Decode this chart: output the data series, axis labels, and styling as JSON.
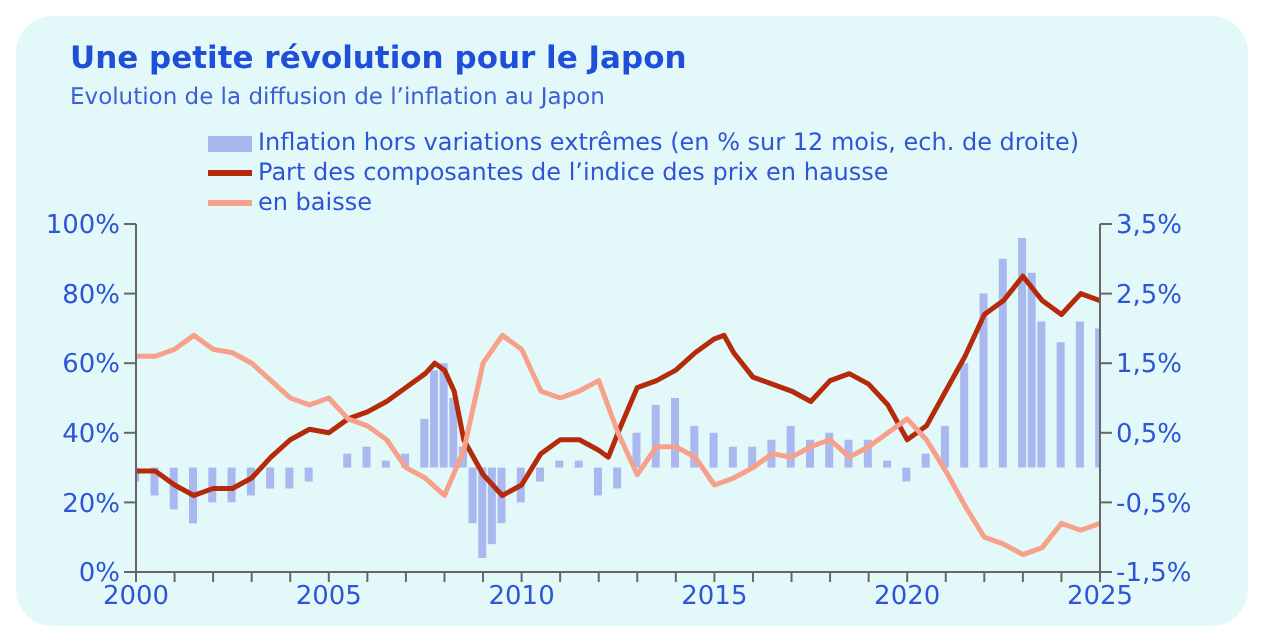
{
  "chart_data": {
    "type": "line",
    "title": "Une petite révolution pour le Japon",
    "subtitle": "Evolution de la diffusion de l’inflation au Japon",
    "legend": "top",
    "grid": false,
    "marker": "none",
    "xlim": [
      2000,
      2025
    ],
    "xticks": [
      2000,
      {
        "value": 2001,
        "label": null
      },
      {
        "value": 2002,
        "label": null
      },
      {
        "value": 2003,
        "label": null
      },
      {
        "value": 2004,
        "label": null
      },
      2005,
      {
        "value": 2006,
        "label": null
      },
      {
        "value": 2007,
        "label": null
      },
      {
        "value": 2008,
        "label": null
      },
      {
        "value": 2009,
        "label": null
      },
      2010,
      {
        "value": 2011,
        "label": null
      },
      {
        "value": 2012,
        "label": null
      },
      {
        "value": 2013,
        "label": null
      },
      {
        "value": 2014,
        "label": null
      },
      2015,
      {
        "value": 2016,
        "label": null
      },
      {
        "value": 2017,
        "label": null
      },
      {
        "value": 2018,
        "label": null
      },
      {
        "value": 2019,
        "label": null
      },
      2020,
      {
        "value": 2021,
        "label": null
      },
      {
        "value": 2022,
        "label": null
      },
      {
        "value": 2023,
        "label": null
      },
      {
        "value": 2024,
        "label": null
      },
      2025
    ],
    "ylim": [
      0,
      100
    ],
    "yticks": [
      {
        "value": 0,
        "label": "0%"
      },
      {
        "value": 20,
        "label": "20%"
      },
      {
        "value": 40,
        "label": "40%"
      },
      {
        "value": 60,
        "label": "60%"
      },
      {
        "value": 80,
        "label": "80%"
      },
      {
        "value": 100,
        "label": "100%"
      }
    ],
    "y2lim": [
      -1.5,
      3.5
    ],
    "y2ticks": [
      {
        "value": -1.5,
        "label": "-1,5%"
      },
      {
        "value": -0.5,
        "label": "-0,5%"
      },
      {
        "value": 0.5,
        "label": "0,5%"
      },
      {
        "value": 1.5,
        "label": "1,5%"
      },
      {
        "value": 2.5,
        "label": "2,5%"
      },
      {
        "value": 3.5,
        "label": "3,5%"
      }
    ],
    "series": [
      {
        "name": "Inflation hors variations extrêmes (en % sur 12 mois, ech. de droite)",
        "type": "bar",
        "axis": "y2",
        "color": "#a9b8ee",
        "x": [
          2000,
          2000.5,
          2001,
          2001.5,
          2002,
          2002.5,
          2003,
          2003.5,
          2004,
          2004.5,
          2005,
          2005.5,
          2006,
          2006.5,
          2007,
          2007.5,
          2007.75,
          2008,
          2008.25,
          2008.5,
          2008.75,
          2009,
          2009.25,
          2009.5,
          2010,
          2010.5,
          2011,
          2011.5,
          2012,
          2012.5,
          2013,
          2013.5,
          2014,
          2014.5,
          2015,
          2015.5,
          2016,
          2016.5,
          2017,
          2017.5,
          2018,
          2018.5,
          2019,
          2019.5,
          2020,
          2020.5,
          2021,
          2021.5,
          2022,
          2022.5,
          2023,
          2023.25,
          2023.5,
          2024,
          2024.5,
          2025
        ],
        "values": [
          -0.2,
          -0.4,
          -0.6,
          -0.8,
          -0.5,
          -0.5,
          -0.4,
          -0.3,
          -0.3,
          -0.2,
          0,
          0.2,
          0.3,
          0.1,
          0.2,
          0.7,
          1.4,
          1.5,
          1.0,
          0.3,
          -0.8,
          -1.3,
          -1.1,
          -0.8,
          -0.5,
          -0.2,
          0.1,
          0.1,
          -0.4,
          -0.3,
          0.5,
          0.9,
          1.0,
          0.6,
          0.5,
          0.3,
          0.3,
          0.4,
          0.6,
          0.4,
          0.5,
          0.4,
          0.4,
          0.1,
          -0.2,
          0.2,
          0.6,
          1.5,
          2.5,
          3.0,
          3.3,
          2.8,
          2.1,
          1.8,
          2.1,
          2.0
        ]
      },
      {
        "name": "Part des composantes de l’indice des prix en hausse",
        "color": "#b52a0a",
        "x": [
          2000,
          2000.5,
          2001,
          2001.5,
          2002,
          2002.5,
          2003,
          2003.5,
          2004,
          2004.5,
          2005,
          2005.5,
          2006,
          2006.5,
          2007,
          2007.5,
          2007.75,
          2008,
          2008.25,
          2008.5,
          2009,
          2009.5,
          2010,
          2010.5,
          2011,
          2011.5,
          2012,
          2012.25,
          2012.5,
          2013,
          2013.5,
          2014,
          2014.5,
          2015,
          2015.25,
          2015.5,
          2016,
          2016.5,
          2017,
          2017.5,
          2018,
          2018.5,
          2019,
          2019.5,
          2020,
          2020.5,
          2021,
          2021.5,
          2022,
          2022.5,
          2023,
          2023.5,
          2024,
          2024.5,
          2025
        ],
        "values": [
          29,
          29,
          25,
          22,
          24,
          24,
          27,
          33,
          38,
          41,
          40,
          44,
          46,
          49,
          53,
          57,
          60,
          58,
          52,
          38,
          28,
          22,
          25,
          34,
          38,
          38,
          35,
          33,
          40,
          53,
          55,
          58,
          63,
          67,
          68,
          63,
          56,
          54,
          52,
          49,
          55,
          57,
          54,
          48,
          38,
          42,
          52,
          62,
          74,
          78,
          85,
          78,
          74,
          80,
          78
        ]
      },
      {
        "name": "en baisse",
        "color": "#f7a08a",
        "x": [
          2000,
          2000.5,
          2001,
          2001.5,
          2002,
          2002.5,
          2003,
          2003.5,
          2004,
          2004.5,
          2005,
          2005.5,
          2006,
          2006.5,
          2007,
          2007.5,
          2008,
          2008.5,
          2009,
          2009.5,
          2010,
          2010.5,
          2011,
          2011.5,
          2012,
          2012.5,
          2013,
          2013.5,
          2014,
          2014.5,
          2015,
          2015.5,
          2016,
          2016.5,
          2017,
          2017.5,
          2018,
          2018.5,
          2019,
          2019.5,
          2020,
          2020.5,
          2021,
          2021.5,
          2022,
          2022.5,
          2023,
          2023.5,
          2024,
          2024.5,
          2025
        ],
        "values": [
          62,
          62,
          64,
          68,
          64,
          63,
          60,
          55,
          50,
          48,
          50,
          44,
          42,
          38,
          30,
          27,
          22,
          35,
          60,
          68,
          64,
          52,
          50,
          52,
          55,
          40,
          28,
          36,
          36,
          33,
          25,
          27,
          30,
          34,
          33,
          36,
          38,
          33,
          36,
          40,
          44,
          38,
          29,
          19,
          10,
          8,
          5,
          7,
          14,
          12,
          14
        ]
      }
    ]
  }
}
